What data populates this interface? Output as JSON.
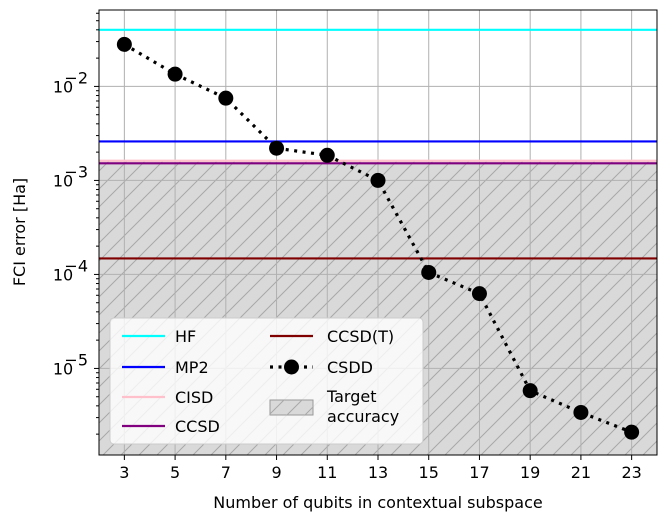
{
  "chart_data": {
    "type": "line",
    "xlabel": "Number of qubits in contextual subspace",
    "ylabel": "FCI error [Ha]",
    "x_ticks": [
      3,
      5,
      7,
      9,
      11,
      13,
      15,
      17,
      19,
      21,
      23
    ],
    "x_tick_labels": [
      "3",
      "5",
      "7",
      "9",
      "11",
      "13",
      "15",
      "17",
      "19",
      "21",
      "23"
    ],
    "xlim": [
      2,
      24
    ],
    "y_scale": "log",
    "ylim": [
      1.2e-06,
      0.065
    ],
    "y_tick_values": [
      1e-05,
      0.0001,
      0.001,
      0.01
    ],
    "y_tick_labels": [
      {
        "base": "10",
        "exp": "−5"
      },
      {
        "base": "10",
        "exp": "−4"
      },
      {
        "base": "10",
        "exp": "−3"
      },
      {
        "base": "10",
        "exp": "−2"
      }
    ],
    "grid": true,
    "legend_position": "lower-left",
    "hlines": [
      {
        "name": "HF",
        "value": 0.04,
        "color": "#00ffff"
      },
      {
        "name": "MP2",
        "value": 0.0026,
        "color": "#0000ff"
      },
      {
        "name": "CISD",
        "value": 0.00162,
        "color": "#ffc0cb"
      },
      {
        "name": "CCSD",
        "value": 0.00152,
        "color": "#800080"
      },
      {
        "name": "CCSD(T)",
        "value": 0.000148,
        "color": "#800000"
      }
    ],
    "series": [
      {
        "name": "CSDD",
        "color": "#000000",
        "x": [
          3,
          5,
          7,
          9,
          11,
          13,
          15,
          17,
          19,
          21,
          23
        ],
        "y": [
          0.028,
          0.0135,
          0.0075,
          0.0022,
          0.00185,
          0.001,
          0.000105,
          6.25e-05,
          5.8e-06,
          3.4e-06,
          2.1e-06
        ]
      }
    ],
    "target_accuracy": {
      "name": [
        "Target",
        "accuracy"
      ],
      "value": 0.0016,
      "color": "#d9d9d9"
    }
  }
}
